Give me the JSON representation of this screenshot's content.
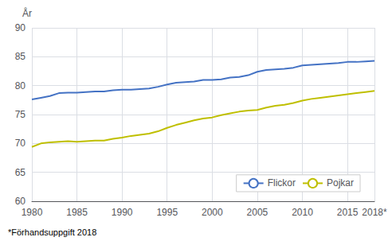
{
  "chart_data": {
    "type": "line",
    "y_label": "År",
    "footnote": "*Förhandsuppgift 2018",
    "x": [
      1980,
      1981,
      1982,
      1983,
      1984,
      1985,
      1986,
      1987,
      1988,
      1989,
      1990,
      1991,
      1992,
      1993,
      1994,
      1995,
      1996,
      1997,
      1998,
      1999,
      2000,
      2001,
      2002,
      2003,
      2004,
      2005,
      2006,
      2007,
      2008,
      2009,
      2010,
      2011,
      2012,
      2013,
      2014,
      2015,
      2016,
      2017,
      2018
    ],
    "series": [
      {
        "name": "Flickor",
        "color": "#4472C4",
        "values": [
          77.6,
          77.9,
          78.2,
          78.7,
          78.8,
          78.8,
          78.9,
          79.0,
          79.0,
          79.2,
          79.3,
          79.3,
          79.4,
          79.5,
          79.8,
          80.2,
          80.5,
          80.6,
          80.7,
          81.0,
          81.0,
          81.1,
          81.4,
          81.5,
          81.8,
          82.4,
          82.7,
          82.8,
          82.9,
          83.1,
          83.5,
          83.6,
          83.7,
          83.8,
          83.9,
          84.1,
          84.1,
          84.2,
          84.3
        ]
      },
      {
        "name": "Pojkar",
        "color": "#BFBF00",
        "values": [
          69.4,
          70.0,
          70.2,
          70.3,
          70.4,
          70.3,
          70.4,
          70.5,
          70.5,
          70.8,
          71.0,
          71.3,
          71.5,
          71.7,
          72.1,
          72.7,
          73.2,
          73.6,
          74.0,
          74.3,
          74.5,
          74.9,
          75.2,
          75.5,
          75.7,
          75.8,
          76.2,
          76.5,
          76.7,
          77.0,
          77.4,
          77.7,
          77.9,
          78.1,
          78.3,
          78.5,
          78.7,
          78.9,
          79.1
        ]
      }
    ],
    "xlim": [
      1980,
      2018
    ],
    "xticks": [
      1980,
      1985,
      1990,
      1995,
      2000,
      2005,
      2010,
      2015,
      {
        "value": 2018,
        "label": "2018*"
      }
    ],
    "ylim": [
      60,
      90
    ],
    "yticks": [
      60,
      65,
      70,
      75,
      80,
      85,
      90
    ],
    "grid": true,
    "legend": "lower right"
  }
}
